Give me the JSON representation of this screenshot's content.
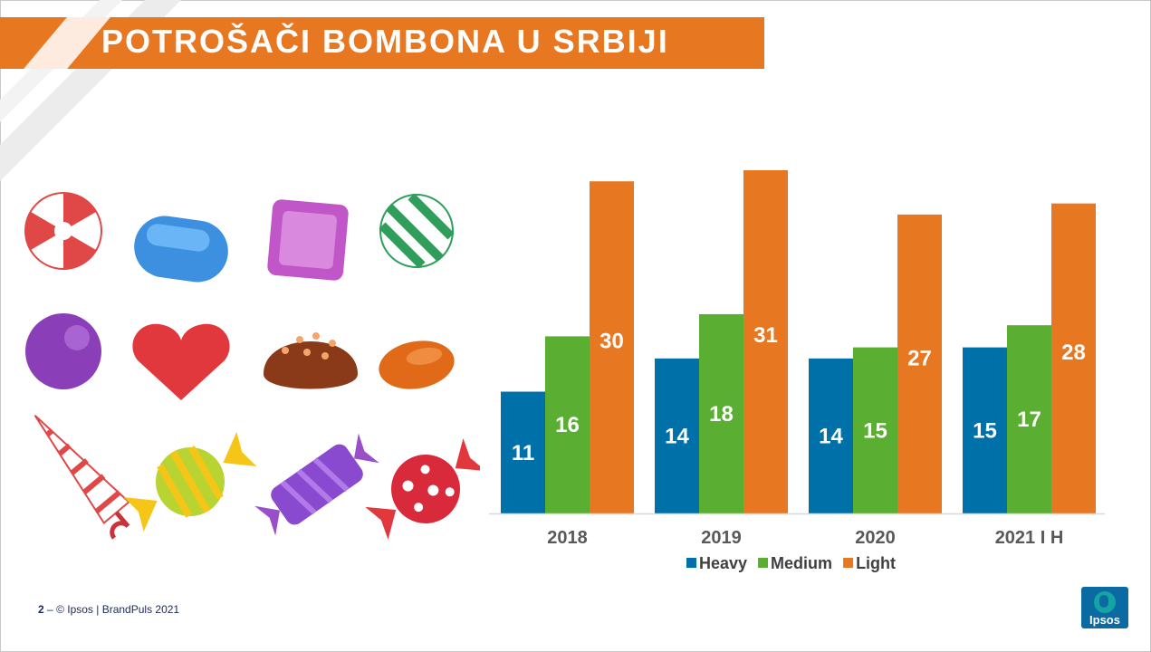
{
  "header": {
    "title": "POTROŠAČI BOMBONA U SRBIJI"
  },
  "footer": {
    "page": "2",
    "sep": "–",
    "copyright": "© Ipsos | BrandPuls 2021"
  },
  "logo": {
    "text": "Ipsos"
  },
  "colors": {
    "heavy": "#0070a8",
    "medium": "#5aaf32",
    "light": "#e87722",
    "accent": "#e87722"
  },
  "chart_data": {
    "type": "bar",
    "title": "",
    "xlabel": "",
    "ylabel": "",
    "categories": [
      "2018",
      "2019",
      "2020",
      "2021 I H"
    ],
    "series": [
      {
        "name": "Heavy",
        "values": [
          11,
          14,
          14,
          15
        ],
        "color": "#0070a8"
      },
      {
        "name": "Medium",
        "values": [
          16,
          18,
          15,
          17
        ],
        "color": "#5aaf32"
      },
      {
        "name": "Light",
        "values": [
          30,
          31,
          27,
          28
        ],
        "color": "#e87722"
      }
    ],
    "ylim": [
      0,
      31
    ],
    "grid": false,
    "legend": "bottom",
    "data_labels": true
  },
  "illustration": {
    "items": [
      "peppermint-candy-icon",
      "blue-gummy-candy-icon",
      "purple-square-candy-icon",
      "green-striped-candy-icon",
      "purple-ball-candy-icon",
      "red-heart-candy-icon",
      "chocolate-candy-icon",
      "orange-drop-candy-icon",
      "candy-cane-icon",
      "yellow-wrapped-candy-icon",
      "purple-wrapped-candy-icon",
      "red-dotted-wrapped-candy-icon"
    ]
  }
}
